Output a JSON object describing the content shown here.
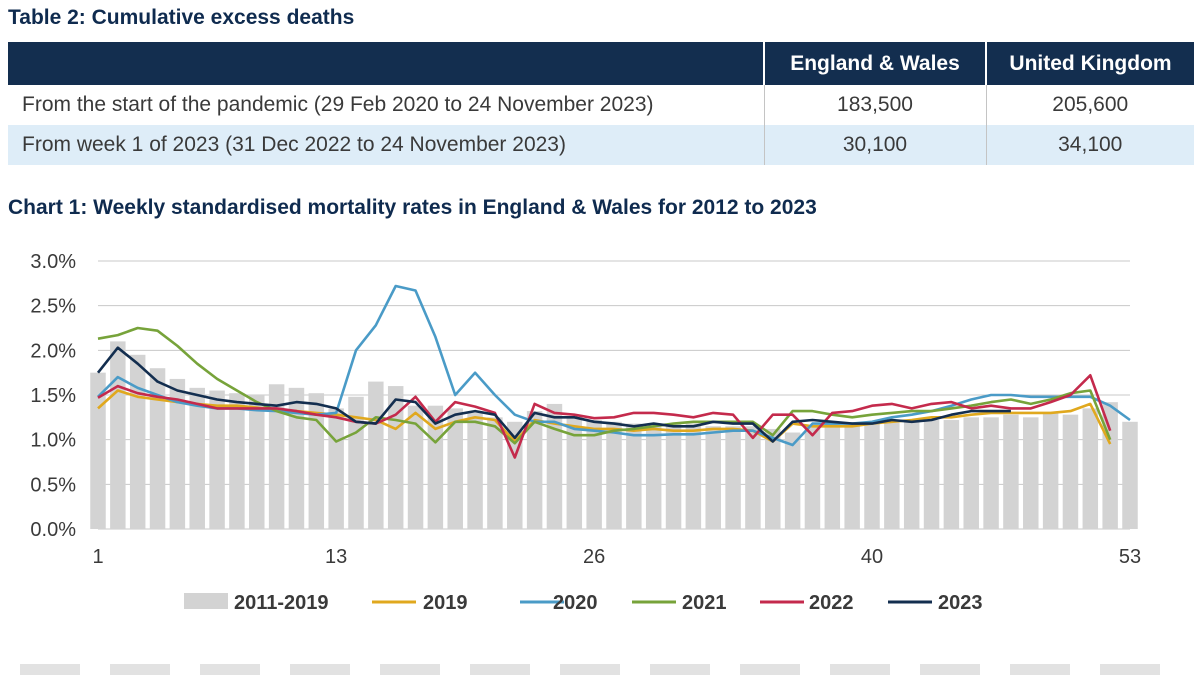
{
  "table": {
    "title": "Table 2: Cumulative excess deaths",
    "headers": [
      "",
      "England & Wales",
      "United Kingdom"
    ],
    "rows": [
      {
        "label": "From the start of the pandemic (29 Feb 2020 to 24 November 2023)",
        "ew": "183,500",
        "uk": "205,600"
      },
      {
        "label": "From week 1 of 2023 (31 Dec 2022 to 24 November 2023)",
        "ew": "30,100",
        "uk": "34,100"
      }
    ]
  },
  "chart_data": {
    "type": "line",
    "title": "Chart 1: Weekly standardised mortality rates in England & Wales for 2012 to 2023",
    "xlabel": "",
    "ylabel": "",
    "xlim": [
      1,
      53
    ],
    "ylim": [
      0,
      3.0
    ],
    "x_ticks": [
      "1",
      "13",
      "26",
      "40",
      "53"
    ],
    "y_ticks": [
      "0.0%",
      "0.5%",
      "1.0%",
      "1.5%",
      "2.0%",
      "2.5%",
      "3.0%"
    ],
    "grid": true,
    "legend": "bottom",
    "bar_series": {
      "name": "2011-2019",
      "color": "#d3d3d3",
      "values": [
        1.75,
        2.1,
        1.95,
        1.8,
        1.68,
        1.58,
        1.55,
        1.52,
        1.5,
        1.62,
        1.58,
        1.52,
        1.35,
        1.48,
        1.65,
        1.6,
        1.38,
        1.38,
        1.35,
        1.3,
        1.25,
        1.2,
        1.32,
        1.4,
        1.25,
        1.22,
        1.2,
        1.18,
        1.15,
        1.18,
        1.18,
        1.15,
        1.15,
        1.15,
        1.12,
        1.08,
        1.15,
        1.18,
        1.15,
        1.2,
        1.2,
        1.22,
        1.22,
        1.22,
        1.25,
        1.25,
        1.28,
        1.25,
        1.3,
        1.28,
        1.35,
        1.42,
        1.2
      ]
    },
    "series": [
      {
        "name": "2019",
        "color": "#e0a81e",
        "values": [
          1.35,
          1.55,
          1.48,
          1.45,
          1.42,
          1.4,
          1.38,
          1.38,
          1.36,
          1.33,
          1.32,
          1.3,
          1.28,
          1.25,
          1.22,
          1.12,
          1.3,
          1.12,
          1.2,
          1.25,
          1.22,
          0.98,
          1.22,
          1.18,
          1.15,
          1.12,
          1.12,
          1.1,
          1.12,
          1.1,
          1.1,
          1.12,
          1.12,
          1.1,
          0.98,
          1.18,
          1.15,
          1.15,
          1.15,
          1.18,
          1.2,
          1.22,
          1.25,
          1.25,
          1.28,
          1.3,
          1.3,
          1.3,
          1.3,
          1.32,
          1.4,
          0.95
        ]
      },
      {
        "name": "2020",
        "color": "#4a9bc7",
        "values": [
          1.48,
          1.7,
          1.58,
          1.5,
          1.42,
          1.38,
          1.35,
          1.35,
          1.33,
          1.32,
          1.3,
          1.28,
          1.3,
          2.0,
          2.28,
          2.72,
          2.67,
          2.15,
          1.5,
          1.75,
          1.5,
          1.28,
          1.2,
          1.2,
          1.12,
          1.1,
          1.08,
          1.05,
          1.05,
          1.06,
          1.06,
          1.08,
          1.1,
          1.1,
          1.02,
          0.94,
          1.18,
          1.18,
          1.18,
          1.2,
          1.25,
          1.28,
          1.32,
          1.38,
          1.45,
          1.5,
          1.5,
          1.48,
          1.48,
          1.48,
          1.48,
          1.38,
          1.22
        ]
      },
      {
        "name": "2021",
        "color": "#77a33a",
        "values": [
          2.13,
          2.17,
          2.25,
          2.22,
          2.05,
          1.85,
          1.68,
          1.55,
          1.42,
          1.32,
          1.25,
          1.22,
          0.98,
          1.08,
          1.25,
          1.22,
          1.18,
          0.97,
          1.2,
          1.2,
          1.15,
          0.96,
          1.2,
          1.12,
          1.05,
          1.05,
          1.1,
          1.12,
          1.15,
          1.18,
          1.2,
          1.2,
          1.2,
          1.2,
          1.05,
          1.32,
          1.32,
          1.28,
          1.25,
          1.28,
          1.3,
          1.32,
          1.32,
          1.35,
          1.38,
          1.42,
          1.45,
          1.4,
          1.45,
          1.52,
          1.55,
          1.0
        ]
      },
      {
        "name": "2022",
        "color": "#c42a4c",
        "values": [
          1.47,
          1.6,
          1.52,
          1.48,
          1.45,
          1.4,
          1.35,
          1.35,
          1.35,
          1.35,
          1.32,
          1.28,
          1.25,
          1.2,
          1.18,
          1.28,
          1.48,
          1.2,
          1.42,
          1.37,
          1.3,
          0.8,
          1.4,
          1.3,
          1.28,
          1.24,
          1.25,
          1.3,
          1.3,
          1.28,
          1.25,
          1.3,
          1.28,
          1.02,
          1.28,
          1.28,
          1.05,
          1.3,
          1.32,
          1.38,
          1.4,
          1.35,
          1.4,
          1.42,
          1.35,
          1.38,
          1.35,
          1.35,
          1.42,
          1.5,
          1.72,
          1.1
        ]
      },
      {
        "name": "2023",
        "color": "#132e4f",
        "values": [
          1.75,
          2.03,
          1.85,
          1.65,
          1.55,
          1.5,
          1.45,
          1.42,
          1.4,
          1.38,
          1.42,
          1.4,
          1.35,
          1.2,
          1.18,
          1.45,
          1.42,
          1.18,
          1.28,
          1.32,
          1.28,
          1.02,
          1.3,
          1.25,
          1.25,
          1.2,
          1.18,
          1.15,
          1.18,
          1.15,
          1.15,
          1.2,
          1.18,
          1.18,
          0.98,
          1.2,
          1.22,
          1.2,
          1.18,
          1.18,
          1.22,
          1.2,
          1.22,
          1.28,
          1.32,
          1.32,
          1.32
        ]
      }
    ]
  }
}
